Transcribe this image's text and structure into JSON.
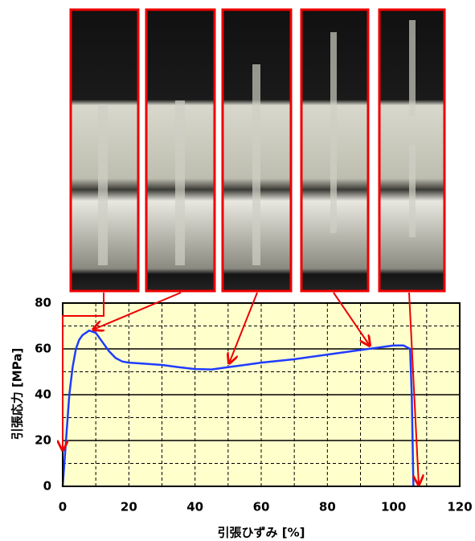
{
  "chart_data": {
    "type": "line",
    "xlabel": "引張ひずみ [%]",
    "ylabel": "引張応力 [MPa]",
    "x": [
      0,
      1,
      2,
      3,
      4,
      5,
      6,
      7,
      8,
      9,
      10,
      12,
      14,
      16,
      18,
      20,
      25,
      30,
      35,
      40,
      45,
      50,
      55,
      60,
      70,
      80,
      90,
      95,
      100,
      103,
      105,
      105.5,
      106
    ],
    "series": [
      {
        "color": "#1f3cff",
        "values": [
          0,
          20,
          40,
          52,
          60,
          64,
          66,
          67,
          68,
          67.5,
          67,
          63,
          59,
          56,
          54.5,
          54,
          53.5,
          53,
          52,
          51.2,
          51,
          52,
          53,
          54,
          55.5,
          57.5,
          59.5,
          60.5,
          61.5,
          61.5,
          60,
          40,
          0
        ]
      }
    ],
    "xlim": [
      0,
      120
    ],
    "xticks": [
      0,
      20,
      40,
      60,
      80,
      100,
      120
    ],
    "ylim": [
      0,
      80
    ],
    "yticks": [
      0,
      20,
      40,
      60,
      80
    ],
    "grid": true
  }
}
